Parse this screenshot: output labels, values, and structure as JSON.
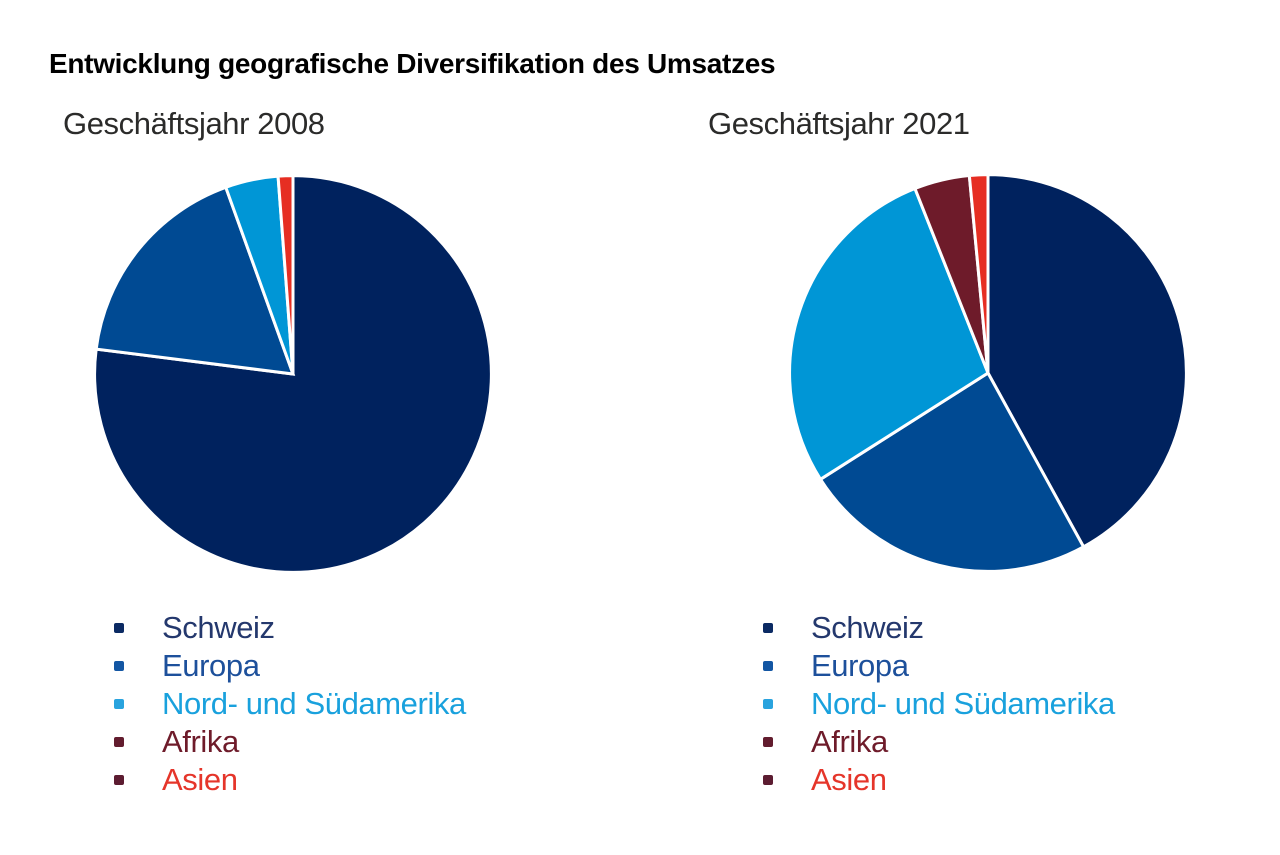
{
  "title": "Entwicklung geografische Diversifikation des Umsatzes",
  "chart_data": [
    {
      "type": "pie",
      "title": "Geschäftsjahr 2008",
      "categories": [
        "Schweiz",
        "Europa",
        "Nord- und Südamerika",
        "Afrika",
        "Asien"
      ],
      "values": [
        77,
        17.5,
        4.3,
        0,
        1.2
      ],
      "unit": "% (estimated from slice angles, no labels shown)",
      "colors": [
        "#00225e",
        "#004a93",
        "#0096d6",
        "#6e1b2a",
        "#e62e22"
      ],
      "start_angle": "12 o'clock",
      "direction": "clockwise",
      "separator_color": "#ffffff",
      "legend_position": "bottom"
    },
    {
      "type": "pie",
      "title": "Geschäftsjahr 2021",
      "categories": [
        "Schweiz",
        "Europa",
        "Nord- und Südamerika",
        "Afrika",
        "Asien"
      ],
      "values": [
        42,
        24,
        28,
        4.5,
        1.5
      ],
      "unit": "% (estimated from slice angles, no labels shown)",
      "colors": [
        "#00225e",
        "#004a93",
        "#0096d6",
        "#6e1b2a",
        "#e62e22"
      ],
      "start_angle": "12 o'clock",
      "direction": "clockwise",
      "separator_color": "#ffffff",
      "legend_position": "bottom"
    }
  ],
  "legend_items": [
    {
      "id": "schweiz",
      "label": "Schweiz",
      "text_color": "#24386d",
      "bullet_color": "#0b2a63"
    },
    {
      "id": "europa",
      "label": "Europa",
      "text_color": "#1d509b",
      "bullet_color": "#1356a3"
    },
    {
      "id": "nord-und-suedamerika",
      "label": "Nord- und Südamerika",
      "text_color": "#19a1dd",
      "bullet_color": "#29a3de"
    },
    {
      "id": "afrika",
      "label": "Afrika",
      "text_color": "#6e1b2a",
      "bullet_color": "#621c2e"
    },
    {
      "id": "asien",
      "label": "Asien",
      "text_color": "#e5352a",
      "bullet_color": "#5c1c31"
    }
  ]
}
